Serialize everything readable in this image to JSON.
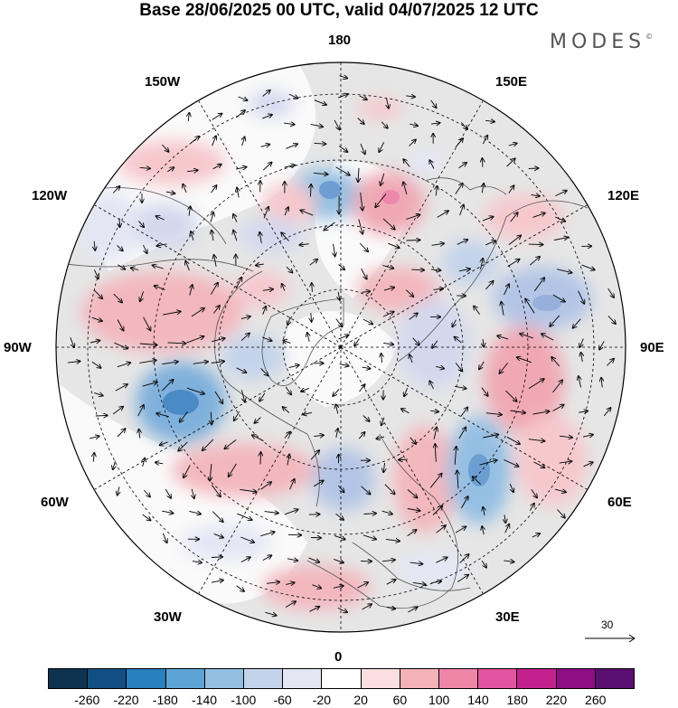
{
  "title": "Base 28/06/2025 00 UTC, valid 04/07/2025 12 UTC",
  "logo": "MODES",
  "logo_mark": "©",
  "longitude_labels": {
    "top": "180",
    "bottom": "0",
    "left": "90W",
    "right": "90E",
    "upper_left_1": "150W",
    "upper_left_2": "120W",
    "upper_right_1": "150E",
    "upper_right_2": "120E",
    "lower_left_1": "60W",
    "lower_left_2": "30W",
    "lower_right_1": "60E",
    "lower_right_2": "30E"
  },
  "vector_scale_label": "30",
  "colorbar": {
    "colors": [
      "#0e3350",
      "#134f84",
      "#2a7fbf",
      "#5ea3d5",
      "#94bfe3",
      "#c3d3ea",
      "#e4e6f4",
      "#ffffff",
      "#fbdede",
      "#f4b2b9",
      "#ee86a8",
      "#e2559e",
      "#c4218f",
      "#8f0e85",
      "#5c0f73"
    ],
    "labels": [
      "-260",
      "-220",
      "-180",
      "-140",
      "-100",
      "-60",
      "-20",
      "20",
      "60",
      "100",
      "140",
      "180",
      "220",
      "260"
    ]
  }
}
